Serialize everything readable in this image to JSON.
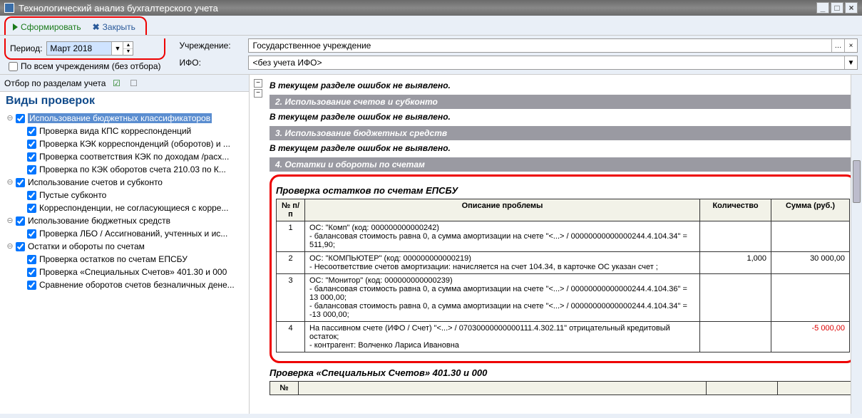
{
  "window": {
    "title": "Технологический анализ бухгалтерского учета"
  },
  "toolbar": {
    "generate": "Сформировать",
    "close": "Закрыть"
  },
  "period": {
    "label": "Период:",
    "value": "Март 2018"
  },
  "all_institutions": {
    "label": "По всем учреждениям (без отбора)",
    "checked": false
  },
  "filters": {
    "institution": {
      "label": "Учреждение:",
      "value": "Государственное учреждение"
    },
    "ifo": {
      "label": "ИФО:",
      "value": "<без учета ИФО>"
    }
  },
  "left_panel": {
    "toolbar_label": "Отбор по разделам учета",
    "heading": "Виды проверок",
    "tree": [
      {
        "label": "Использование бюджетных классификаторов",
        "checked": true,
        "selected": true,
        "expanded": true,
        "children": [
          {
            "label": "Проверка вида КПС корреспонденций",
            "checked": true
          },
          {
            "label": "Проверка КЭК корреспонденций (оборотов) и ...",
            "checked": true
          },
          {
            "label": "Проверка соответствия КЭК по доходам /расх...",
            "checked": true
          },
          {
            "label": "Проверка по КЭК оборотов счета 210.03 по К...",
            "checked": true
          }
        ]
      },
      {
        "label": "Использование счетов и субконто",
        "checked": true,
        "expanded": true,
        "children": [
          {
            "label": "Пустые субконто",
            "checked": true
          },
          {
            "label": "Корреспонденции, не согласующиеся с корре...",
            "checked": true
          }
        ]
      },
      {
        "label": "Использование бюджетных средств",
        "checked": true,
        "expanded": true,
        "children": [
          {
            "label": "Проверка ЛБО / Ассигнований, учтенных и ис...",
            "checked": true
          }
        ]
      },
      {
        "label": "Остатки и обороты по счетам",
        "checked": true,
        "expanded": true,
        "children": [
          {
            "label": "Проверка остатков по счетам ЕПСБУ",
            "checked": true
          },
          {
            "label": "Проверка «Специальных Счетов» 401.30 и 000",
            "checked": true
          },
          {
            "label": "Сравнение оборотов счетов безналичных дене...",
            "checked": true
          }
        ]
      }
    ]
  },
  "report": {
    "no_errors_text": "В текущем разделе ошибок не выявлено.",
    "sections": [
      {
        "num": "2.",
        "title": "Использование счетов и субконто"
      },
      {
        "num": "3.",
        "title": "Использование бюджетных средств"
      },
      {
        "num": "4.",
        "title": "Остатки и обороты по счетам"
      }
    ],
    "table1": {
      "title": "Проверка остатков по счетам ЕПСБУ",
      "columns": [
        "№ п/п",
        "Описание проблемы",
        "Количество",
        "Сумма (руб.)"
      ],
      "rows": [
        {
          "n": "1",
          "desc": "ОС: \"Комп\" (код: 000000000000242)\n - балансовая стоимость равна 0, а сумма амортизации на счете \"<...> / 00000000000000244.4.104.34\" = 511,90;",
          "qty": "",
          "sum": ""
        },
        {
          "n": "2",
          "desc": "ОС: \"КОМПЬЮТЕР\" (код: 000000000000219)\n  - Несоответствие счетов амортизации: начисляется на счет 104.34, в карточке ОС указан счет ;",
          "qty": "1,000",
          "sum": "30 000,00"
        },
        {
          "n": "3",
          "desc": "ОС: \"Монитор\" (код: 000000000000239)\n - балансовая стоимость равна 0, а сумма амортизации на счете \"<...> / 00000000000000244.4.104.36\" = 13 000,00;\n - балансовая стоимость равна 0, а сумма амортизации на счете \"<...> / 00000000000000244.4.104.34\" = -13 000,00;",
          "qty": "",
          "sum": ""
        },
        {
          "n": "4",
          "desc": "На пассивном счете (ИФО / Счет) \"<...> / 07030000000000111.4.302.11\" отрицательный кредитовый остаток;\n  - контрагент: Волченко Лариса Ивановна",
          "qty": "",
          "sum": "-5 000,00",
          "neg": true
        }
      ]
    },
    "table2": {
      "title": "Проверка «Специальных Счетов» 401.30 и 000",
      "columns": [
        "№",
        "",
        "",
        ""
      ]
    }
  },
  "colors": {
    "highlight_border": "#e00",
    "title_bar_bg": "#777",
    "section_bar_bg": "#9a9aa2",
    "heading_color": "#104a8a",
    "selection_bg": "#5a8dd0",
    "background": "#e9eff7"
  }
}
